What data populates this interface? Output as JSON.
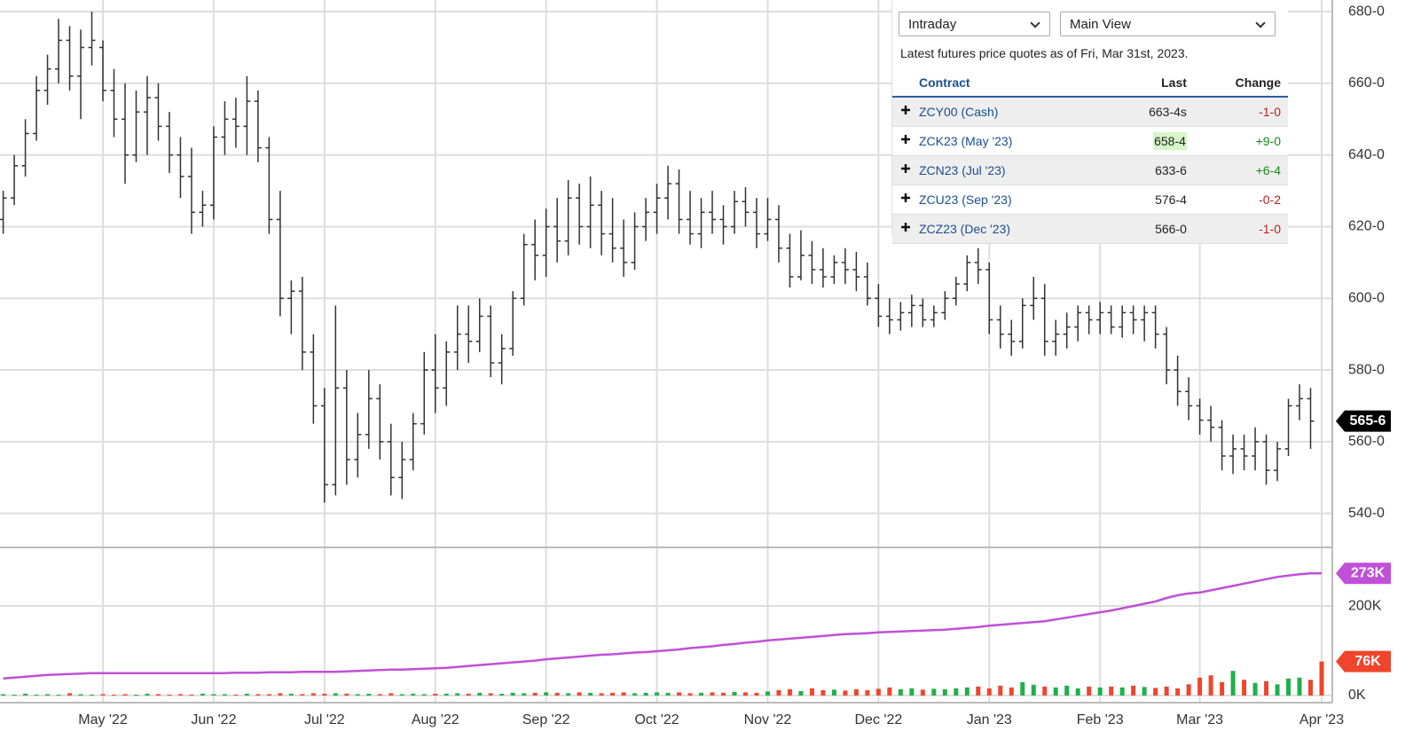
{
  "chart_data": {
    "type": "ohlc",
    "categories": [
      null,
      null,
      null,
      null,
      null,
      null,
      null,
      null,
      null,
      "May '22",
      null,
      null,
      null,
      null,
      null,
      null,
      null,
      null,
      null,
      "Jun '22",
      null,
      null,
      null,
      null,
      null,
      null,
      null,
      null,
      null,
      "Jul '22",
      null,
      null,
      null,
      null,
      null,
      null,
      null,
      null,
      null,
      "Aug '22",
      null,
      null,
      null,
      null,
      null,
      null,
      null,
      null,
      null,
      "Sep '22",
      null,
      null,
      null,
      null,
      null,
      null,
      null,
      null,
      null,
      "Oct '22",
      null,
      null,
      null,
      null,
      null,
      null,
      null,
      null,
      null,
      "Nov '22",
      null,
      null,
      null,
      null,
      null,
      null,
      null,
      null,
      null,
      "Dec '22",
      null,
      null,
      null,
      null,
      null,
      null,
      null,
      null,
      null,
      "Jan '23",
      null,
      null,
      null,
      null,
      null,
      null,
      null,
      null,
      null,
      "Feb '23",
      null,
      null,
      null,
      null,
      null,
      null,
      null,
      null,
      "Mar '23",
      null,
      null,
      null,
      null,
      null,
      null,
      null,
      null,
      null,
      null,
      "Apr '23"
    ],
    "ohlc": [
      [
        622,
        630,
        618,
        628
      ],
      [
        628,
        640,
        626,
        637
      ],
      [
        637,
        650,
        634,
        646
      ],
      [
        646,
        662,
        644,
        658
      ],
      [
        658,
        668,
        654,
        664
      ],
      [
        664,
        678,
        660,
        672
      ],
      [
        672,
        676,
        658,
        662
      ],
      [
        662,
        675,
        650,
        670
      ],
      [
        670,
        680,
        665,
        672
      ],
      [
        670,
        672,
        655,
        658
      ],
      [
        658,
        664,
        645,
        650
      ],
      [
        650,
        660,
        632,
        640
      ],
      [
        640,
        658,
        638,
        652
      ],
      [
        652,
        662,
        640,
        656
      ],
      [
        656,
        660,
        644,
        648
      ],
      [
        648,
        652,
        635,
        640
      ],
      [
        640,
        645,
        628,
        634
      ],
      [
        634,
        642,
        618,
        624
      ],
      [
        624,
        630,
        620,
        626
      ],
      [
        626,
        648,
        622,
        645
      ],
      [
        645,
        655,
        640,
        650
      ],
      [
        650,
        656,
        642,
        648
      ],
      [
        648,
        662,
        640,
        655
      ],
      [
        655,
        658,
        638,
        642
      ],
      [
        642,
        645,
        618,
        622
      ],
      [
        622,
        630,
        595,
        600
      ],
      [
        600,
        605,
        590,
        602
      ],
      [
        602,
        606,
        580,
        585
      ],
      [
        585,
        590,
        565,
        570
      ],
      [
        570,
        575,
        543,
        548
      ],
      [
        548,
        598,
        545,
        575
      ],
      [
        575,
        580,
        548,
        555
      ],
      [
        555,
        568,
        550,
        562
      ],
      [
        562,
        580,
        558,
        572
      ],
      [
        572,
        576,
        555,
        560
      ],
      [
        560,
        565,
        545,
        550
      ],
      [
        550,
        560,
        544,
        555
      ],
      [
        555,
        568,
        552,
        565
      ],
      [
        565,
        585,
        562,
        580
      ],
      [
        580,
        590,
        568,
        575
      ],
      [
        575,
        588,
        570,
        585
      ],
      [
        585,
        598,
        580,
        590
      ],
      [
        590,
        598,
        582,
        588
      ],
      [
        588,
        600,
        585,
        595
      ],
      [
        595,
        598,
        578,
        582
      ],
      [
        582,
        590,
        576,
        586
      ],
      [
        586,
        602,
        584,
        600
      ],
      [
        600,
        618,
        598,
        615
      ],
      [
        615,
        622,
        605,
        612
      ],
      [
        612,
        625,
        606,
        620
      ],
      [
        620,
        628,
        610,
        616
      ],
      [
        616,
        633,
        612,
        628
      ],
      [
        628,
        632,
        615,
        620
      ],
      [
        620,
        634,
        614,
        626
      ],
      [
        626,
        630,
        612,
        618
      ],
      [
        618,
        628,
        610,
        614
      ],
      [
        614,
        622,
        606,
        610
      ],
      [
        610,
        624,
        608,
        620
      ],
      [
        620,
        628,
        616,
        624
      ],
      [
        624,
        632,
        618,
        628
      ],
      [
        628,
        637,
        622,
        632
      ],
      [
        632,
        636,
        618,
        622
      ],
      [
        622,
        630,
        615,
        618
      ],
      [
        618,
        628,
        614,
        624
      ],
      [
        624,
        630,
        618,
        622
      ],
      [
        622,
        626,
        615,
        620
      ],
      [
        620,
        630,
        618,
        627
      ],
      [
        627,
        631,
        620,
        624
      ],
      [
        624,
        628,
        614,
        618
      ],
      [
        618,
        628,
        616,
        622
      ],
      [
        622,
        626,
        610,
        614
      ],
      [
        614,
        618,
        603,
        606
      ],
      [
        606,
        619,
        605,
        612
      ],
      [
        612,
        616,
        604,
        608
      ],
      [
        608,
        614,
        603,
        606
      ],
      [
        606,
        612,
        604,
        610
      ],
      [
        610,
        614,
        604,
        608
      ],
      [
        608,
        613,
        602,
        606
      ],
      [
        606,
        610,
        598,
        600
      ],
      [
        600,
        604,
        592,
        595
      ],
      [
        595,
        600,
        590,
        594
      ],
      [
        594,
        599,
        591,
        596
      ],
      [
        596,
        601,
        592,
        598
      ],
      [
        598,
        600,
        592,
        594
      ],
      [
        594,
        598,
        592,
        596
      ],
      [
        596,
        602,
        594,
        600
      ],
      [
        600,
        606,
        598,
        604
      ],
      [
        604,
        612,
        602,
        610
      ],
      [
        610,
        614,
        604,
        608
      ],
      [
        608,
        610,
        590,
        594
      ],
      [
        594,
        598,
        586,
        590
      ],
      [
        590,
        594,
        584,
        588
      ],
      [
        588,
        600,
        586,
        598
      ],
      [
        598,
        606,
        594,
        600
      ],
      [
        600,
        604,
        584,
        588
      ],
      [
        588,
        594,
        584,
        590
      ],
      [
        590,
        596,
        586,
        592
      ],
      [
        592,
        598,
        588,
        596
      ],
      [
        596,
        598,
        590,
        594
      ],
      [
        594,
        599,
        590,
        596
      ],
      [
        596,
        598,
        590,
        592
      ],
      [
        592,
        598,
        589,
        596
      ],
      [
        596,
        598,
        590,
        594
      ],
      [
        594,
        598,
        588,
        596
      ],
      [
        596,
        598,
        586,
        590
      ],
      [
        590,
        592,
        576,
        580
      ],
      [
        580,
        584,
        570,
        574
      ],
      [
        574,
        578,
        566,
        570
      ],
      [
        570,
        572,
        562,
        566
      ],
      [
        566,
        570,
        560,
        564
      ],
      [
        564,
        566,
        552,
        556
      ],
      [
        556,
        562,
        551,
        558
      ],
      [
        558,
        562,
        552,
        556
      ],
      [
        556,
        564,
        552,
        560
      ],
      [
        560,
        562,
        548,
        552
      ],
      [
        552,
        560,
        549,
        558
      ],
      [
        558,
        572,
        556,
        570
      ],
      [
        570,
        576,
        566,
        572
      ],
      [
        572,
        575,
        558,
        565.75
      ]
    ],
    "volume": [
      3000,
      2000,
      4000,
      2000,
      3000,
      2000,
      5000,
      3000,
      2000,
      3000,
      2000,
      3000,
      2000,
      4000,
      3000,
      2000,
      3000,
      2000,
      4000,
      3000,
      3000,
      2000,
      4000,
      3000,
      3000,
      5000,
      4000,
      3000,
      5000,
      4000,
      5000,
      4000,
      3000,
      4000,
      3000,
      5000,
      3000,
      4000,
      3000,
      4000,
      4000,
      5000,
      4000,
      6000,
      5000,
      4000,
      6000,
      5000,
      6000,
      7000,
      6000,
      5000,
      7000,
      6000,
      5000,
      6000,
      7000,
      5000,
      6000,
      7000,
      6000,
      7000,
      5000,
      6000,
      7000,
      6000,
      8000,
      7000,
      6000,
      9000,
      12000,
      14000,
      10000,
      16000,
      12000,
      13000,
      11000,
      14000,
      12000,
      15000,
      18000,
      14000,
      16000,
      13000,
      15000,
      14000,
      16000,
      18000,
      20000,
      16000,
      22000,
      18000,
      30000,
      24000,
      20000,
      18000,
      22000,
      16000,
      20000,
      18000,
      20000,
      18000,
      22000,
      19000,
      17000,
      20000,
      16000,
      25000,
      40000,
      45000,
      30000,
      55000,
      35000,
      28000,
      32000,
      25000,
      38000,
      40000,
      35000,
      76000
    ],
    "open_interest": [
      38000,
      40000,
      42000,
      44000,
      46000,
      47000,
      48000,
      49000,
      50000,
      50000,
      50000,
      50000,
      50000,
      50000,
      50000,
      50000,
      50000,
      50000,
      50000,
      50000,
      50000,
      51000,
      51000,
      51000,
      52000,
      52000,
      52000,
      53000,
      53000,
      53000,
      53000,
      54000,
      55000,
      56000,
      57000,
      58000,
      58000,
      59000,
      60000,
      61000,
      62000,
      64000,
      66000,
      68000,
      70000,
      72000,
      74000,
      76000,
      78000,
      81000,
      83000,
      85000,
      87000,
      89000,
      91000,
      92000,
      94000,
      96000,
      97000,
      99000,
      101000,
      103000,
      106000,
      108000,
      110000,
      113000,
      115000,
      118000,
      120000,
      123000,
      125000,
      127000,
      129000,
      131000,
      133000,
      135000,
      137000,
      138000,
      139000,
      141000,
      142000,
      143000,
      144000,
      145000,
      146000,
      147000,
      149000,
      151000,
      153000,
      156000,
      158000,
      160000,
      162000,
      164000,
      166000,
      170000,
      174000,
      178000,
      182000,
      186000,
      190000,
      195000,
      200000,
      205000,
      210000,
      218000,
      224000,
      228000,
      230000,
      235000,
      240000,
      245000,
      250000,
      255000,
      260000,
      265000,
      268000,
      271000,
      273000,
      273000
    ],
    "ylim": [
      530.5,
      683.25
    ],
    "yticks": [
      {
        "value": 540,
        "label": "540-0"
      },
      {
        "value": 560,
        "label": "560-0"
      },
      {
        "value": 580,
        "label": "580-0"
      },
      {
        "value": 600,
        "label": "600-0"
      },
      {
        "value": 620,
        "label": "620-0"
      },
      {
        "value": 640,
        "label": "640-0"
      },
      {
        "value": 660,
        "label": "660-0"
      },
      {
        "value": 680,
        "label": "680-0"
      }
    ],
    "y2lim": [
      -16000,
      329000
    ],
    "y2ticks": [
      {
        "value": 0,
        "label": "0K"
      },
      {
        "value": 200000,
        "label": "200K"
      }
    ],
    "last_price": {
      "value": 565.75,
      "label": "565-6"
    },
    "last_open_interest": {
      "value": 273000,
      "label": "273K"
    },
    "last_volume": {
      "value": 76000,
      "label": "76K"
    },
    "bar_color": "#333333",
    "up_color": "#1fb04a",
    "down_color": "#f0452d",
    "open_interest_color": "#c050d8",
    "grid": true
  },
  "panel": {
    "selects": [
      "Intraday",
      "Main View"
    ],
    "note": "Latest futures price quotes as of Fri, Mar 31st, 2023.",
    "columns": [
      "Contract",
      "Last",
      "Change"
    ],
    "rows": [
      [
        "ZCY00 (Cash)",
        "663-4s",
        "-1-0"
      ],
      [
        "ZCK23 (May '23)",
        "658-4",
        "+9-0"
      ],
      [
        "ZCN23 (Jul '23)",
        "633-6",
        "+6-4"
      ],
      [
        "ZCU23 (Sep '23)",
        "576-4",
        "-0-2"
      ],
      [
        "ZCZ23 (Dec '23)",
        "566-0",
        "-1-0"
      ]
    ],
    "highlight_cell": [
      1,
      1
    ]
  }
}
